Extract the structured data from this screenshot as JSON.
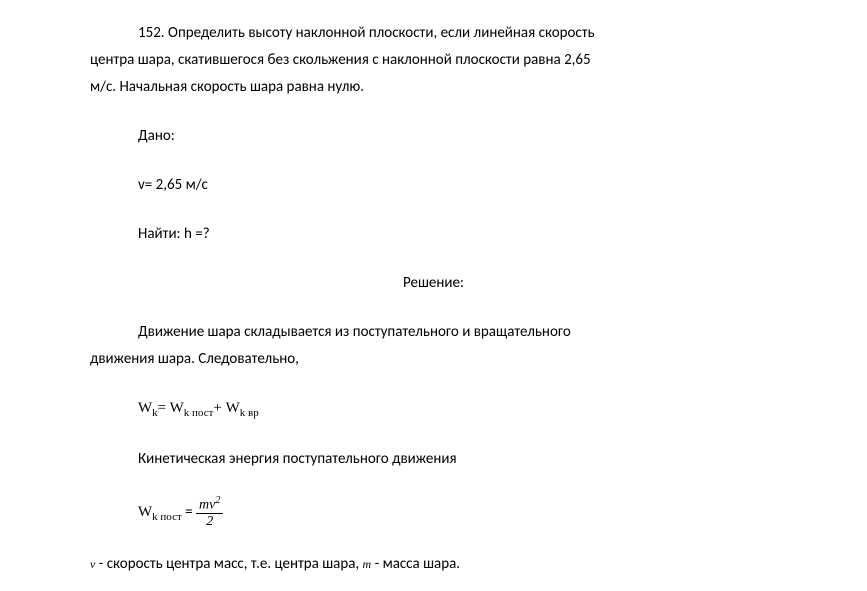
{
  "problem": {
    "number": "152.",
    "text_line1": "Определить высоту наклонной плоскости, если линейная скорость",
    "text_line2": "центра шара, скатившегося без скольжения с наклонной плоскости равна 2,65",
    "text_line3": "м/с. Начальная скорость шара равна нулю."
  },
  "given": {
    "label": "Дано:",
    "value1": "v= 2,65 м/с",
    "find": "Найти: h =?"
  },
  "solution": {
    "heading": "Решение:",
    "text1_line1": "Движение шара складывается из поступательного и вращательного",
    "text1_line2": "движения шара. Следовательно,",
    "formula1_lhs": "W",
    "formula1_sub1": "k",
    "formula1_eq": "= W",
    "formula1_sub2": "k пост",
    "formula1_plus": "+ W",
    "formula1_sub3": "k вр",
    "text2": "Кинетическая энергия поступательного движения",
    "formula2_lhs": "W",
    "formula2_sub": "k пост",
    "formula2_eq": " = ",
    "formula2_num": "mv",
    "formula2_sup": "2",
    "formula2_den": "2",
    "text3_v": "v",
    "text3_part1": " - скорость центра масс, т.е. центра шара, ",
    "text3_m": "m",
    "text3_part2": " - масса шара."
  },
  "style": {
    "background_color": "#ffffff",
    "text_color": "#000000",
    "body_font": "Calibri, Arial, sans-serif",
    "formula_font": "Times New Roman, serif",
    "base_fontsize": 15
  }
}
